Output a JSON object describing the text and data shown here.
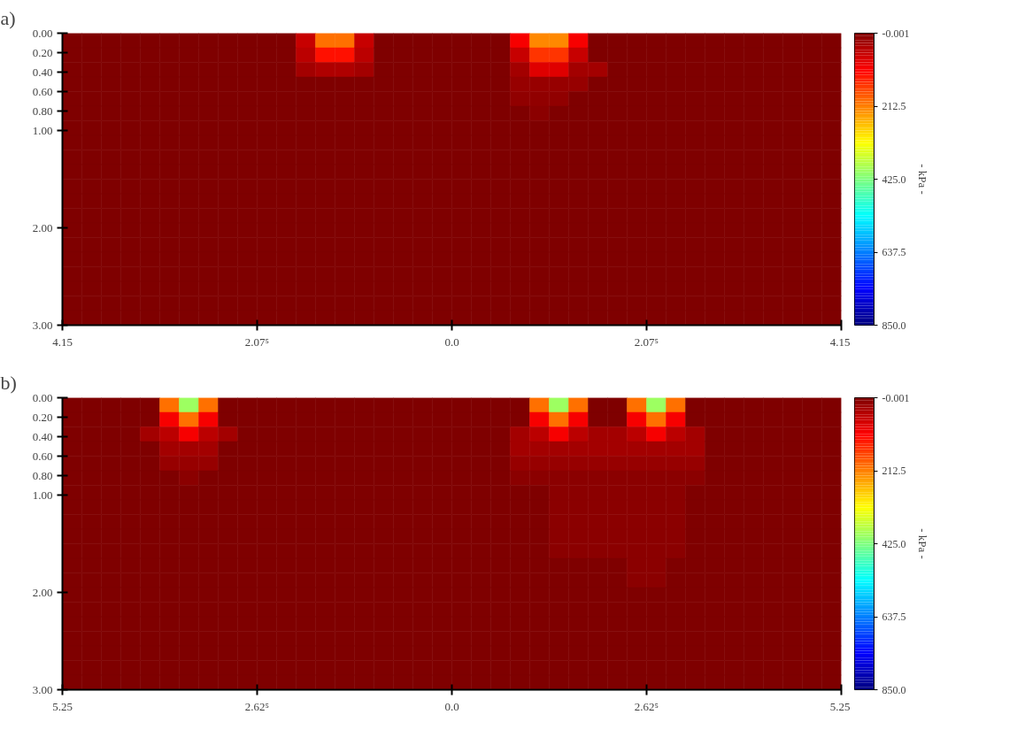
{
  "chart_data": [
    {
      "type": "heatmap",
      "title": "a)",
      "clabel": "- kPa -",
      "xlim": [
        -4.15,
        4.15
      ],
      "xticks": [
        {
          "value": -4.15,
          "label": "4.15"
        },
        {
          "value": -2.075,
          "label": "2.07⁵"
        },
        {
          "value": 0,
          "label": "0.0"
        },
        {
          "value": 2.075,
          "label": "2.07⁵"
        },
        {
          "value": 4.15,
          "label": "4.15"
        }
      ],
      "ylim": [
        3.0,
        0.0
      ],
      "yticks": [
        {
          "value": 0,
          "label": "0.00"
        },
        {
          "value": 0.2,
          "label": "0.20"
        },
        {
          "value": 0.4,
          "label": "0.40"
        },
        {
          "value": 0.6,
          "label": "0.60"
        },
        {
          "value": 0.8,
          "label": "0.80"
        },
        {
          "value": 1,
          "label": "1.00"
        },
        {
          "value": 2,
          "label": "2.00"
        },
        {
          "value": 3,
          "label": "3.00"
        }
      ],
      "clim": [
        -0.001,
        850
      ],
      "cticks": [
        {
          "value": -0.001,
          "label": "-0.001"
        },
        {
          "value": 212.5,
          "label": "212.5"
        },
        {
          "value": 425,
          "label": "425.0"
        },
        {
          "value": 637.5,
          "label": "637.5"
        },
        {
          "value": 850,
          "label": "850.0"
        }
      ],
      "cells": [
        [
          0,
          0,
          0,
          0,
          0,
          0,
          0,
          0,
          0,
          0,
          0,
          0,
          60,
          200,
          200,
          60,
          0,
          0,
          0,
          0,
          0,
          0,
          0,
          100,
          220,
          220,
          100,
          0,
          0,
          0,
          0,
          0,
          0,
          0,
          0,
          0,
          0,
          0,
          0,
          0
        ],
        [
          0,
          0,
          0,
          0,
          0,
          0,
          0,
          0,
          0,
          0,
          0,
          0,
          50,
          120,
          120,
          50,
          0,
          0,
          0,
          0,
          0,
          0,
          0,
          60,
          150,
          150,
          60,
          0,
          0,
          0,
          0,
          0,
          0,
          0,
          0,
          0,
          0,
          0,
          0,
          0
        ],
        [
          0,
          0,
          0,
          0,
          0,
          0,
          0,
          0,
          0,
          0,
          0,
          0,
          30,
          40,
          40,
          30,
          0,
          0,
          0,
          0,
          0,
          0,
          0,
          30,
          80,
          80,
          30,
          30,
          0,
          0,
          0,
          0,
          0,
          0,
          0,
          0,
          0,
          0,
          0,
          0
        ],
        [
          0,
          0,
          0,
          0,
          0,
          0,
          0,
          0,
          0,
          0,
          0,
          0,
          0,
          0,
          0,
          0,
          0,
          0,
          0,
          0,
          0,
          0,
          0,
          20,
          20,
          20,
          20,
          0,
          0,
          0,
          0,
          0,
          0,
          0,
          0,
          0,
          0,
          0,
          0,
          0
        ],
        [
          0,
          0,
          0,
          0,
          0,
          0,
          0,
          0,
          0,
          0,
          0,
          0,
          0,
          0,
          0,
          0,
          0,
          0,
          0,
          0,
          0,
          0,
          0,
          15,
          15,
          15,
          0,
          0,
          0,
          0,
          0,
          0,
          0,
          0,
          0,
          0,
          0,
          0,
          0,
          0
        ],
        [
          0,
          0,
          0,
          0,
          0,
          0,
          0,
          0,
          0,
          0,
          0,
          0,
          0,
          0,
          0,
          0,
          0,
          0,
          0,
          0,
          0,
          0,
          0,
          0,
          10,
          0,
          0,
          0,
          0,
          0,
          0,
          0,
          0,
          0,
          0,
          0,
          0,
          0,
          0,
          0
        ],
        [
          0,
          0,
          0,
          0,
          0,
          0,
          0,
          0,
          0,
          0,
          0,
          0,
          0,
          0,
          0,
          0,
          0,
          0,
          0,
          0,
          0,
          0,
          0,
          0,
          0,
          0,
          0,
          0,
          0,
          0,
          0,
          0,
          0,
          0,
          0,
          0,
          0,
          0,
          0,
          0
        ],
        [
          0,
          0,
          0,
          0,
          0,
          0,
          0,
          0,
          0,
          0,
          0,
          0,
          0,
          0,
          0,
          0,
          0,
          0,
          0,
          0,
          0,
          0,
          0,
          0,
          0,
          0,
          0,
          0,
          0,
          0,
          0,
          0,
          0,
          0,
          0,
          0,
          0,
          0,
          0,
          0
        ],
        [
          0,
          0,
          0,
          0,
          0,
          0,
          0,
          0,
          0,
          0,
          0,
          0,
          0,
          0,
          0,
          0,
          0,
          0,
          0,
          0,
          0,
          0,
          0,
          0,
          0,
          0,
          0,
          0,
          0,
          0,
          0,
          0,
          0,
          0,
          0,
          0,
          0,
          0,
          0,
          0
        ],
        [
          0,
          0,
          0,
          0,
          0,
          0,
          0,
          0,
          0,
          0,
          0,
          0,
          0,
          0,
          0,
          0,
          0,
          0,
          0,
          0,
          0,
          0,
          0,
          0,
          0,
          0,
          0,
          0,
          0,
          0,
          0,
          0,
          0,
          0,
          0,
          0,
          0,
          0,
          0,
          0
        ],
        [
          0,
          0,
          0,
          0,
          0,
          0,
          0,
          0,
          0,
          0,
          0,
          0,
          0,
          0,
          0,
          0,
          0,
          0,
          0,
          0,
          0,
          0,
          0,
          0,
          0,
          0,
          0,
          0,
          0,
          0,
          0,
          0,
          0,
          0,
          0,
          0,
          0,
          0,
          0,
          0
        ],
        [
          0,
          0,
          0,
          0,
          0,
          0,
          0,
          0,
          0,
          0,
          0,
          0,
          0,
          0,
          0,
          0,
          0,
          0,
          0,
          0,
          0,
          0,
          0,
          0,
          0,
          0,
          0,
          0,
          0,
          0,
          0,
          0,
          0,
          0,
          0,
          0,
          0,
          0,
          0,
          0
        ],
        [
          0,
          0,
          0,
          0,
          0,
          0,
          0,
          0,
          0,
          0,
          0,
          0,
          0,
          0,
          0,
          0,
          0,
          0,
          0,
          0,
          0,
          0,
          0,
          0,
          0,
          0,
          0,
          0,
          0,
          0,
          0,
          0,
          0,
          0,
          0,
          0,
          0,
          0,
          0,
          0
        ],
        [
          0,
          0,
          0,
          0,
          0,
          0,
          0,
          0,
          0,
          0,
          0,
          0,
          0,
          0,
          0,
          0,
          0,
          0,
          0,
          0,
          0,
          0,
          0,
          0,
          0,
          0,
          0,
          0,
          0,
          0,
          0,
          0,
          0,
          0,
          0,
          0,
          0,
          0,
          0,
          0
        ],
        [
          0,
          0,
          0,
          0,
          0,
          0,
          0,
          0,
          0,
          0,
          0,
          0,
          0,
          0,
          0,
          0,
          0,
          0,
          0,
          0,
          0,
          0,
          0,
          0,
          0,
          0,
          0,
          0,
          0,
          0,
          0,
          0,
          0,
          0,
          0,
          0,
          0,
          0,
          0,
          0
        ],
        [
          0,
          0,
          0,
          0,
          0,
          0,
          0,
          0,
          0,
          0,
          0,
          0,
          0,
          0,
          0,
          0,
          0,
          0,
          0,
          0,
          0,
          0,
          0,
          0,
          0,
          0,
          0,
          0,
          0,
          0,
          0,
          0,
          0,
          0,
          0,
          0,
          0,
          0,
          0,
          0
        ],
        [
          0,
          0,
          0,
          0,
          0,
          0,
          0,
          0,
          0,
          0,
          0,
          0,
          0,
          0,
          0,
          0,
          0,
          0,
          0,
          0,
          0,
          0,
          0,
          0,
          0,
          0,
          0,
          0,
          0,
          0,
          0,
          0,
          0,
          0,
          0,
          0,
          0,
          0,
          0,
          0
        ],
        [
          0,
          0,
          0,
          0,
          0,
          0,
          0,
          0,
          0,
          0,
          0,
          0,
          0,
          0,
          0,
          0,
          0,
          0,
          0,
          0,
          0,
          0,
          0,
          0,
          0,
          0,
          0,
          0,
          0,
          0,
          0,
          0,
          0,
          0,
          0,
          0,
          0,
          0,
          0,
          0
        ],
        [
          0,
          0,
          0,
          0,
          0,
          0,
          0,
          0,
          0,
          0,
          0,
          0,
          0,
          0,
          0,
          0,
          0,
          0,
          0,
          0,
          0,
          0,
          0,
          0,
          0,
          0,
          0,
          0,
          0,
          0,
          0,
          0,
          0,
          0,
          0,
          0,
          0,
          0,
          0,
          0
        ],
        [
          0,
          0,
          0,
          0,
          0,
          0,
          0,
          0,
          0,
          0,
          0,
          0,
          0,
          0,
          0,
          0,
          0,
          0,
          0,
          0,
          0,
          0,
          0,
          0,
          0,
          0,
          0,
          0,
          0,
          0,
          0,
          0,
          0,
          0,
          0,
          0,
          0,
          0,
          0,
          0
        ]
      ]
    },
    {
      "type": "heatmap",
      "title": "b)",
      "clabel": "- kPa -",
      "xlim": [
        -5.25,
        5.25
      ],
      "xticks": [
        {
          "value": -5.25,
          "label": "5.25"
        },
        {
          "value": -2.625,
          "label": "2.62⁵"
        },
        {
          "value": 0,
          "label": "0.0"
        },
        {
          "value": 2.625,
          "label": "2.62⁵"
        },
        {
          "value": 5.25,
          "label": "5.25"
        }
      ],
      "ylim": [
        3.0,
        0.0
      ],
      "yticks": [
        {
          "value": 0,
          "label": "0.00"
        },
        {
          "value": 0.2,
          "label": "0.20"
        },
        {
          "value": 0.4,
          "label": "0.40"
        },
        {
          "value": 0.6,
          "label": "0.60"
        },
        {
          "value": 0.8,
          "label": "0.80"
        },
        {
          "value": 1,
          "label": "1.00"
        },
        {
          "value": 2,
          "label": "2.00"
        },
        {
          "value": 3,
          "label": "3.00"
        }
      ],
      "clim": [
        -0.001,
        850
      ],
      "cticks": [
        {
          "value": -0.001,
          "label": "-0.001"
        },
        {
          "value": 212.5,
          "label": "212.5"
        },
        {
          "value": 425,
          "label": "425.0"
        },
        {
          "value": 637.5,
          "label": "637.5"
        },
        {
          "value": 850,
          "label": "850.0"
        }
      ],
      "cells": [
        [
          0,
          0,
          0,
          0,
          0,
          200,
          400,
          200,
          0,
          0,
          0,
          0,
          0,
          0,
          0,
          0,
          0,
          0,
          0,
          0,
          0,
          0,
          0,
          0,
          200,
          400,
          200,
          0,
          0,
          200,
          400,
          200,
          0,
          0,
          0,
          0,
          0,
          0,
          0,
          0
        ],
        [
          0,
          0,
          0,
          0,
          0,
          100,
          200,
          100,
          0,
          0,
          0,
          0,
          0,
          0,
          0,
          0,
          0,
          0,
          0,
          0,
          0,
          0,
          0,
          0,
          100,
          200,
          100,
          0,
          0,
          100,
          200,
          100,
          0,
          0,
          0,
          0,
          0,
          0,
          0,
          0
        ],
        [
          0,
          0,
          0,
          0,
          30,
          50,
          100,
          50,
          30,
          0,
          0,
          0,
          0,
          0,
          0,
          0,
          0,
          0,
          0,
          0,
          0,
          0,
          0,
          30,
          50,
          100,
          50,
          30,
          30,
          50,
          100,
          50,
          30,
          0,
          0,
          0,
          0,
          0,
          0,
          0
        ],
        [
          0,
          0,
          0,
          0,
          0,
          30,
          30,
          30,
          0,
          0,
          0,
          0,
          0,
          0,
          0,
          0,
          0,
          0,
          0,
          0,
          0,
          0,
          0,
          30,
          30,
          30,
          30,
          30,
          30,
          30,
          30,
          30,
          30,
          0,
          0,
          0,
          0,
          0,
          0,
          0
        ],
        [
          0,
          0,
          0,
          0,
          0,
          20,
          20,
          20,
          0,
          0,
          0,
          0,
          0,
          0,
          0,
          0,
          0,
          0,
          0,
          0,
          0,
          0,
          0,
          20,
          20,
          20,
          20,
          20,
          20,
          20,
          20,
          20,
          20,
          0,
          0,
          0,
          0,
          0,
          0,
          0
        ],
        [
          0,
          0,
          0,
          0,
          0,
          0,
          10,
          0,
          0,
          0,
          0,
          0,
          0,
          0,
          0,
          0,
          0,
          0,
          0,
          0,
          0,
          0,
          0,
          10,
          10,
          10,
          10,
          10,
          10,
          10,
          10,
          10,
          10,
          0,
          0,
          0,
          0,
          0,
          0,
          0
        ],
        [
          0,
          0,
          0,
          0,
          0,
          0,
          0,
          0,
          0,
          0,
          0,
          0,
          0,
          0,
          0,
          0,
          0,
          0,
          0,
          0,
          0,
          0,
          0,
          0,
          0,
          10,
          10,
          10,
          10,
          10,
          10,
          10,
          0,
          0,
          0,
          0,
          0,
          0,
          0,
          0
        ],
        [
          0,
          0,
          0,
          0,
          0,
          0,
          0,
          0,
          0,
          0,
          0,
          0,
          0,
          0,
          0,
          0,
          0,
          0,
          0,
          0,
          0,
          0,
          0,
          0,
          0,
          10,
          10,
          10,
          10,
          10,
          10,
          10,
          0,
          0,
          0,
          0,
          0,
          0,
          0,
          0
        ],
        [
          0,
          0,
          0,
          0,
          0,
          0,
          0,
          0,
          0,
          0,
          0,
          0,
          0,
          0,
          0,
          0,
          0,
          0,
          0,
          0,
          0,
          0,
          0,
          0,
          0,
          10,
          10,
          10,
          10,
          10,
          10,
          10,
          0,
          0,
          0,
          0,
          0,
          0,
          0,
          0
        ],
        [
          0,
          0,
          0,
          0,
          0,
          0,
          0,
          0,
          0,
          0,
          0,
          0,
          0,
          0,
          0,
          0,
          0,
          0,
          0,
          0,
          0,
          0,
          0,
          0,
          0,
          10,
          10,
          10,
          10,
          10,
          10,
          10,
          0,
          0,
          0,
          0,
          0,
          0,
          0,
          0
        ],
        [
          0,
          0,
          0,
          0,
          0,
          0,
          0,
          0,
          0,
          0,
          0,
          0,
          0,
          0,
          0,
          0,
          0,
          0,
          0,
          0,
          0,
          0,
          0,
          0,
          0,
          10,
          10,
          10,
          10,
          10,
          10,
          10,
          0,
          0,
          0,
          0,
          0,
          0,
          0,
          0
        ],
        [
          0,
          0,
          0,
          0,
          0,
          0,
          0,
          0,
          0,
          0,
          0,
          0,
          0,
          0,
          0,
          0,
          0,
          0,
          0,
          0,
          0,
          0,
          0,
          0,
          0,
          0,
          0,
          0,
          0,
          10,
          10,
          0,
          0,
          0,
          0,
          0,
          0,
          0,
          0,
          0
        ],
        [
          0,
          0,
          0,
          0,
          0,
          0,
          0,
          0,
          0,
          0,
          0,
          0,
          0,
          0,
          0,
          0,
          0,
          0,
          0,
          0,
          0,
          0,
          0,
          0,
          0,
          0,
          0,
          0,
          0,
          10,
          10,
          0,
          0,
          0,
          0,
          0,
          0,
          0,
          0,
          0
        ],
        [
          0,
          0,
          0,
          0,
          0,
          0,
          0,
          0,
          0,
          0,
          0,
          0,
          0,
          0,
          0,
          0,
          0,
          0,
          0,
          0,
          0,
          0,
          0,
          0,
          0,
          0,
          0,
          0,
          0,
          0,
          0,
          0,
          0,
          0,
          0,
          0,
          0,
          0,
          0,
          0
        ],
        [
          0,
          0,
          0,
          0,
          0,
          0,
          0,
          0,
          0,
          0,
          0,
          0,
          0,
          0,
          0,
          0,
          0,
          0,
          0,
          0,
          0,
          0,
          0,
          0,
          0,
          0,
          0,
          0,
          0,
          0,
          0,
          0,
          0,
          0,
          0,
          0,
          0,
          0,
          0,
          0
        ],
        [
          0,
          0,
          0,
          0,
          0,
          0,
          0,
          0,
          0,
          0,
          0,
          0,
          0,
          0,
          0,
          0,
          0,
          0,
          0,
          0,
          0,
          0,
          0,
          0,
          0,
          0,
          0,
          0,
          0,
          0,
          0,
          0,
          0,
          0,
          0,
          0,
          0,
          0,
          0,
          0
        ],
        [
          0,
          0,
          0,
          0,
          0,
          0,
          0,
          0,
          0,
          0,
          0,
          0,
          0,
          0,
          0,
          0,
          0,
          0,
          0,
          0,
          0,
          0,
          0,
          0,
          0,
          0,
          0,
          0,
          0,
          0,
          0,
          0,
          0,
          0,
          0,
          0,
          0,
          0,
          0,
          0
        ],
        [
          0,
          0,
          0,
          0,
          0,
          0,
          0,
          0,
          0,
          0,
          0,
          0,
          0,
          0,
          0,
          0,
          0,
          0,
          0,
          0,
          0,
          0,
          0,
          0,
          0,
          0,
          0,
          0,
          0,
          0,
          0,
          0,
          0,
          0,
          0,
          0,
          0,
          0,
          0,
          0
        ],
        [
          0,
          0,
          0,
          0,
          0,
          0,
          0,
          0,
          0,
          0,
          0,
          0,
          0,
          0,
          0,
          0,
          0,
          0,
          0,
          0,
          0,
          0,
          0,
          0,
          0,
          0,
          0,
          0,
          0,
          0,
          0,
          0,
          0,
          0,
          0,
          0,
          0,
          0,
          0,
          0
        ],
        [
          0,
          0,
          0,
          0,
          0,
          0,
          0,
          0,
          0,
          0,
          0,
          0,
          0,
          0,
          0,
          0,
          0,
          0,
          0,
          0,
          0,
          0,
          0,
          0,
          0,
          0,
          0,
          0,
          0,
          0,
          0,
          0,
          0,
          0,
          0,
          0,
          0,
          0,
          0,
          0
        ]
      ]
    }
  ]
}
